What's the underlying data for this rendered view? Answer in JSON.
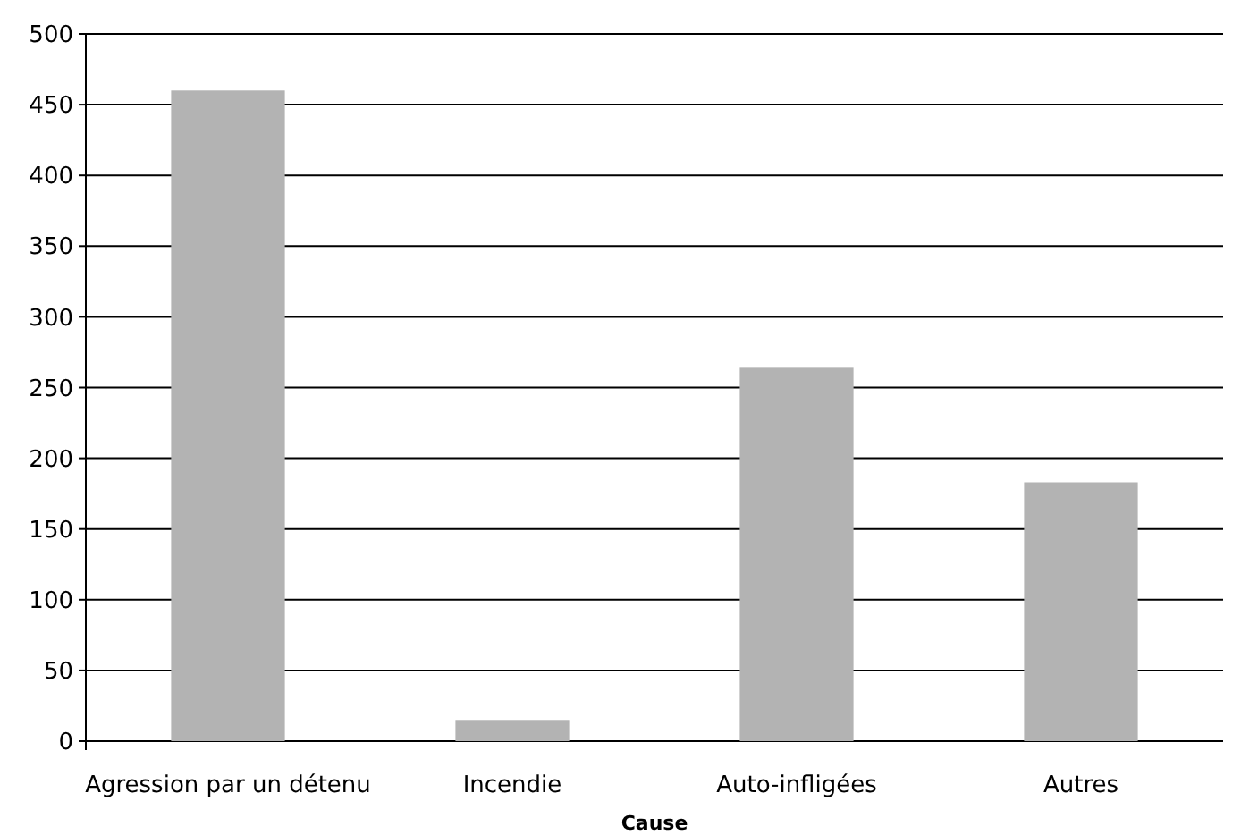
{
  "chart_data": {
    "type": "bar",
    "xlabel": "Cause",
    "categories": [
      "Agression par un détenu",
      "Incendie",
      "Auto-infligées",
      "Autres"
    ],
    "values": [
      460,
      15,
      264,
      183
    ],
    "color": "#b3b3b3",
    "ylim": [
      0,
      500
    ],
    "yticks": [
      0,
      50,
      100,
      150,
      200,
      250,
      300,
      350,
      400,
      450,
      500
    ],
    "grid": "y"
  }
}
